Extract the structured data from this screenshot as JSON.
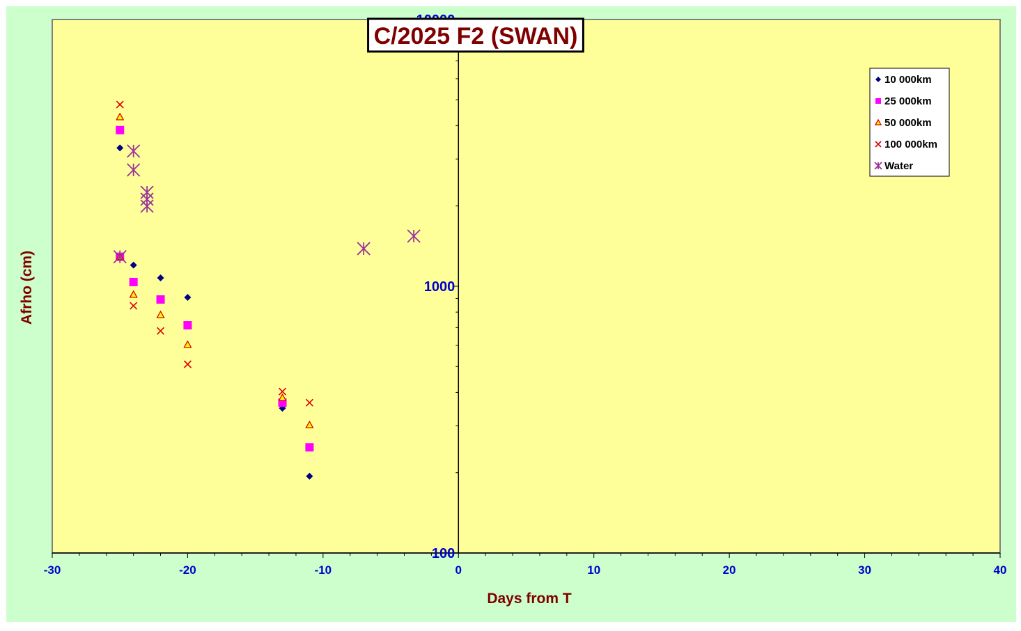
{
  "chart_data": {
    "type": "scatter",
    "title": "C/2025 F2 (SWAN)",
    "x_label": "Days from T",
    "y_label": "Afrho (cm)",
    "xlim": [
      -30,
      40
    ],
    "xticks": [
      -30,
      -20,
      -10,
      0,
      10,
      20,
      30,
      40
    ],
    "ylim": [
      100,
      10000
    ],
    "yticks": [
      100,
      1000,
      10000
    ],
    "log_y": true,
    "grid": false,
    "legend": "upper right",
    "series": [
      {
        "name": "10 000km",
        "marker": "diamond",
        "color": "#000080",
        "x": [
          -25,
          -25,
          -24,
          -22,
          -20,
          -13,
          -11
        ],
        "values": [
          3300,
          1290,
          1200,
          1075,
          908,
          349,
          194
        ]
      },
      {
        "name": "25 000km",
        "marker": "square",
        "color": "#ff00ff",
        "x": [
          -25,
          -25,
          -24,
          -22,
          -20,
          -13,
          -11
        ],
        "values": [
          3850,
          1290,
          1037,
          892,
          714,
          366,
          249
        ]
      },
      {
        "name": "50 000km",
        "marker": "triangle",
        "color": "#ffff00",
        "x": [
          -25,
          -25,
          -24,
          -22,
          -20,
          -13,
          -11
        ],
        "values": [
          4310,
          1290,
          931,
          781,
          604,
          382,
          302
        ]
      },
      {
        "name": "100 000km",
        "marker": "x",
        "color": "#dd0000",
        "x": [
          -25,
          -25,
          -24,
          -22,
          -20,
          -13,
          -11
        ],
        "values": [
          4800,
          1290,
          845,
          680,
          510,
          403,
          366
        ]
      },
      {
        "name": "Water",
        "marker": "star",
        "color": "#993399",
        "x": [
          -25,
          -24,
          -24,
          -23,
          -23,
          -23,
          -7,
          -3.3
        ],
        "values": [
          1290,
          3212,
          2729,
          2250,
          2120,
          1996,
          1384,
          1542
        ]
      }
    ]
  }
}
